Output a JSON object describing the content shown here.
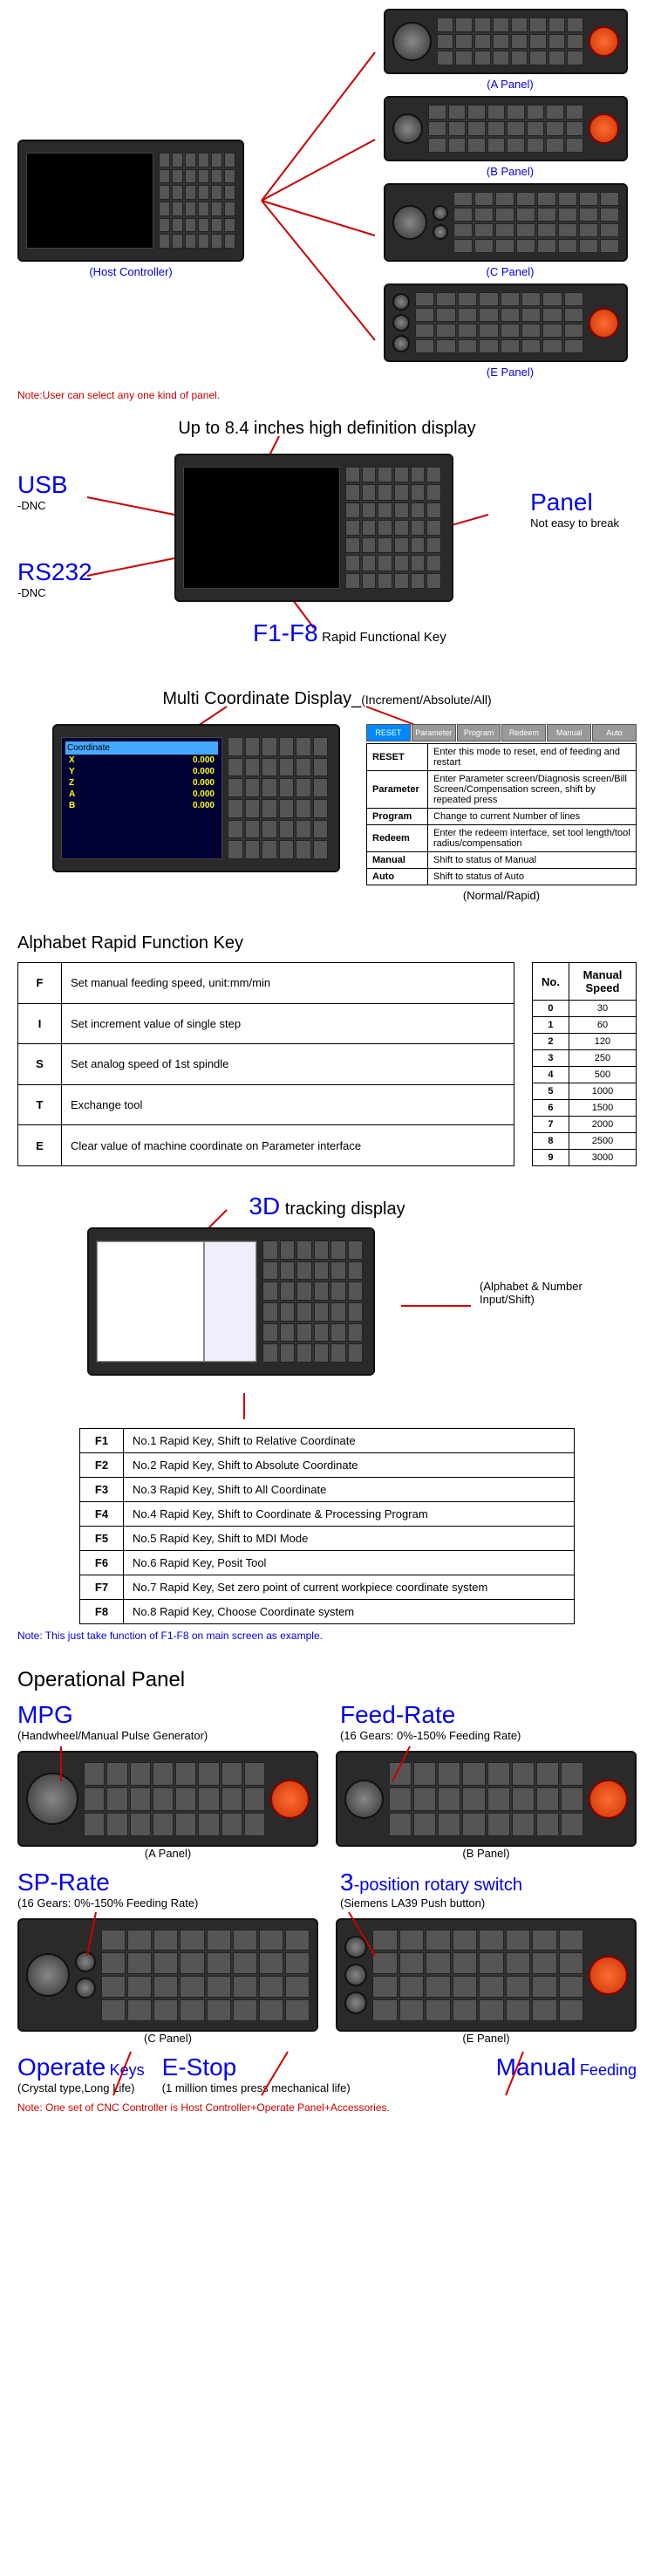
{
  "section1": {
    "host_label": "(Host Controller)",
    "panel_labels": [
      "(A Panel)",
      "(B Panel)",
      "(C Panel)",
      "(E Panel)"
    ],
    "note": "Note:User can select any one kind of panel."
  },
  "section2": {
    "title": "Up to 8.4 inches high definition display",
    "usb_label": "USB",
    "usb_sub": "-DNC",
    "rs232_label": "RS232",
    "rs232_sub": "-DNC",
    "panel_label": "Panel",
    "panel_sub": "Not easy to break",
    "f1f8_label": "F1-F8",
    "f1f8_sub": "Rapid Functional Key"
  },
  "section3": {
    "title": "Multi Coordinate Display_",
    "title_sub": "(Increment/Absolute/All)",
    "mode_label": "(Normal/Rapid)",
    "coord_labels": [
      "X",
      "Y",
      "Z",
      "A",
      "B"
    ],
    "coord_vals": [
      "0.000",
      "0.000",
      "0.000",
      "0.000",
      "0.000"
    ],
    "mode_buttons": [
      "RESET",
      "Parameter",
      "Program",
      "Redeem",
      "Manual",
      "Auto"
    ],
    "mode_descs": [
      "Enter this mode to reset, end of feeding and restart",
      "Enter Parameter screen/Diagnosis screen/Bill Screen/Compensation screen, shift by repeated press",
      "Change to current Number of lines",
      "Enter the redeem interface, set tool length/tool radius/compensation",
      "Shift to status of Manual",
      "Shift to status of Auto"
    ]
  },
  "table_alpha": {
    "title": "Alphabet Rapid Function Key",
    "rows": [
      [
        "F",
        "Set manual feeding speed, unit:mm/min"
      ],
      [
        "I",
        "Set increment value of single step"
      ],
      [
        "S",
        "Set analog speed of 1st spindle"
      ],
      [
        "T",
        "Exchange tool"
      ],
      [
        "E",
        "Clear value of machine coordinate on Parameter interface"
      ]
    ]
  },
  "table_speed": {
    "header": [
      "No.",
      "Manual Speed"
    ],
    "rows": [
      [
        "0",
        "30"
      ],
      [
        "1",
        "60"
      ],
      [
        "2",
        "120"
      ],
      [
        "3",
        "250"
      ],
      [
        "4",
        "500"
      ],
      [
        "5",
        "1000"
      ],
      [
        "6",
        "1500"
      ],
      [
        "7",
        "2000"
      ],
      [
        "8",
        "2500"
      ],
      [
        "9",
        "3000"
      ]
    ]
  },
  "section4": {
    "title_prefix": "3D",
    "title_rest": "tracking display",
    "side_label": "(Alphabet & Number Input/Shift)"
  },
  "table_f": {
    "rows": [
      [
        "F1",
        "No.1 Rapid Key, Shift to Relative Coordinate"
      ],
      [
        "F2",
        "No.2 Rapid Key, Shift to Absolute Coordinate"
      ],
      [
        "F3",
        "No.3 Rapid Key, Shift to All Coordinate"
      ],
      [
        "F4",
        "No.4 Rapid Key, Shift to Coordinate & Processing Program"
      ],
      [
        "F5",
        "No.5 Rapid Key, Shift to MDI Mode"
      ],
      [
        "F6",
        "No.6 Rapid Key, Posit Tool"
      ],
      [
        "F7",
        "No.7 Rapid Key, Set zero point of current workpiece coordinate system"
      ],
      [
        "F8",
        "No.8 Rapid Key, Choose Coordinate system"
      ]
    ],
    "note": "Note: This just take function of F1-F8 on main screen as example."
  },
  "section5": {
    "title": "Operational Panel",
    "mpg_label": "MPG",
    "mpg_sub": "(Handwheel/Manual Pulse Generator)",
    "feed_label": "Feed-Rate",
    "feed_sub": "(16 Gears: 0%-150% Feeding Rate)",
    "sp_label": "SP-Rate",
    "sp_sub": "(16 Gears: 0%-150% Feeding Rate)",
    "rotary_label": "3",
    "rotary_rest": "-position rotary switch",
    "rotary_sub": "(Siemens LA39 Push button)",
    "a_label": "(A Panel)",
    "b_label": "(B Panel)",
    "c_label": "(C Panel)",
    "e_label": "(E Panel)",
    "operate_label": "Operate",
    "operate_rest": "Keys",
    "operate_sub": "(Crystal type,Long Life)",
    "estop_label": "E-Stop",
    "estop_sub": "(1 million times press mechanical life)",
    "manual_label": "Manual",
    "manual_rest": "Feeding",
    "note": "Note: One set of CNC Controller is Host Controller+Operate Panel+Accessories."
  },
  "colors": {
    "blue": "#0000ee",
    "red": "#cc0000",
    "panel_bg": "#2a2a2a"
  }
}
